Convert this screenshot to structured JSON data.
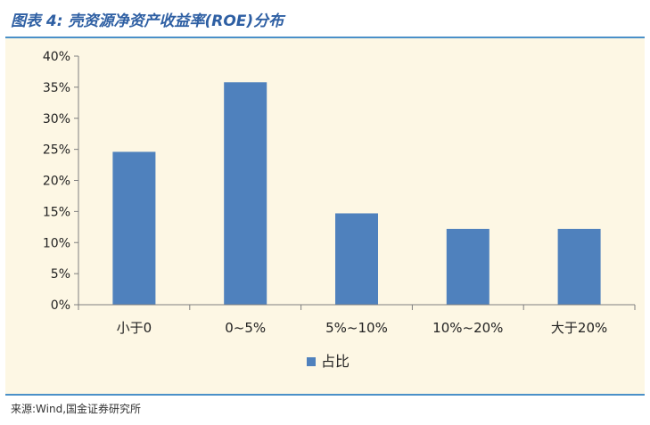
{
  "header": {
    "title": "图表 4:  壳资源净资产收益率(ROE)分布"
  },
  "footer": {
    "source": "来源:Wind,国金证券研究所"
  },
  "colors": {
    "bar": "#4F81BD",
    "title": "#2E5FA3",
    "rule": "#4A90C8",
    "panel_bg": "#FDF7E4"
  },
  "chart_data": {
    "type": "bar",
    "title": "",
    "xlabel": "",
    "ylabel": "",
    "categories": [
      "小于0",
      "0~5%",
      "5%~10%",
      "10%~20%",
      "大于20%"
    ],
    "series": [
      {
        "name": "占比",
        "values": [
          24.6,
          35.8,
          14.7,
          12.2,
          12.2
        ]
      }
    ],
    "y_ticks": [
      "0%",
      "5%",
      "10%",
      "15%",
      "20%",
      "25%",
      "30%",
      "35%",
      "40%"
    ],
    "ylim": [
      0,
      40
    ],
    "grid": false,
    "legend_position": "bottom"
  }
}
